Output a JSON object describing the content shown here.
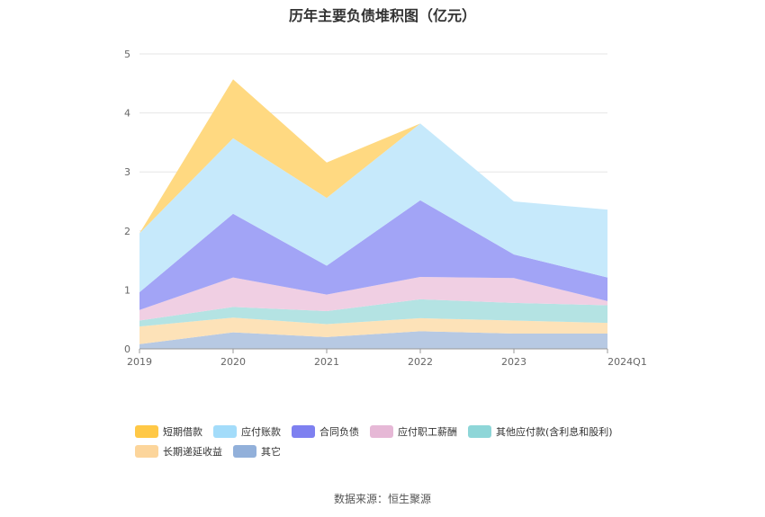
{
  "source_label": "数据来源：恒生聚源",
  "chart_data": {
    "type": "area",
    "title": "历年主要负债堆积图（亿元）",
    "stacked": true,
    "categories": [
      "2019",
      "2020",
      "2021",
      "2022",
      "2023",
      "2024Q1"
    ],
    "ylim": [
      0,
      5
    ],
    "yticks": [
      0,
      1,
      2,
      3,
      4,
      5
    ],
    "grid": true,
    "legend_position": "bottom",
    "series": [
      {
        "name": "其它",
        "color": "#b7c9e3",
        "values": [
          0.08,
          0.28,
          0.2,
          0.3,
          0.26,
          0.26
        ]
      },
      {
        "name": "长期递延收益",
        "color": "#fde2b8",
        "values": [
          0.3,
          0.25,
          0.22,
          0.22,
          0.22,
          0.18
        ]
      },
      {
        "name": "其他应付款(含利息和股利)",
        "color": "#b4e3e3",
        "values": [
          0.1,
          0.18,
          0.22,
          0.32,
          0.3,
          0.3
        ]
      },
      {
        "name": "应付职工薪酬",
        "color": "#f0cfe3",
        "values": [
          0.18,
          0.5,
          0.28,
          0.38,
          0.42,
          0.07
        ]
      },
      {
        "name": "合同负债",
        "color": "#a2a4f6",
        "values": [
          0.3,
          1.08,
          0.49,
          1.3,
          0.4,
          0.4
        ]
      },
      {
        "name": "应付账款",
        "color": "#c6e9fb",
        "values": [
          1.0,
          1.28,
          1.15,
          1.3,
          0.9,
          1.15
        ]
      },
      {
        "name": "短期借款",
        "color": "#ffd981",
        "values": [
          0.0,
          1.0,
          0.6,
          0.0,
          0.0,
          0.0
        ]
      }
    ]
  },
  "legend": [
    {
      "label": "短期借款",
      "color": "#ffc846"
    },
    {
      "label": "应付账款",
      "color": "#a3dcfa"
    },
    {
      "label": "合同负债",
      "color": "#7e80f0"
    },
    {
      "label": "应付职工薪酬",
      "color": "#e6b8d6"
    },
    {
      "label": "其他应付款(含利息和股利)",
      "color": "#8ed6d8"
    },
    {
      "label": "长期递延收益",
      "color": "#fcd59b"
    },
    {
      "label": "其它",
      "color": "#92b0da"
    }
  ]
}
